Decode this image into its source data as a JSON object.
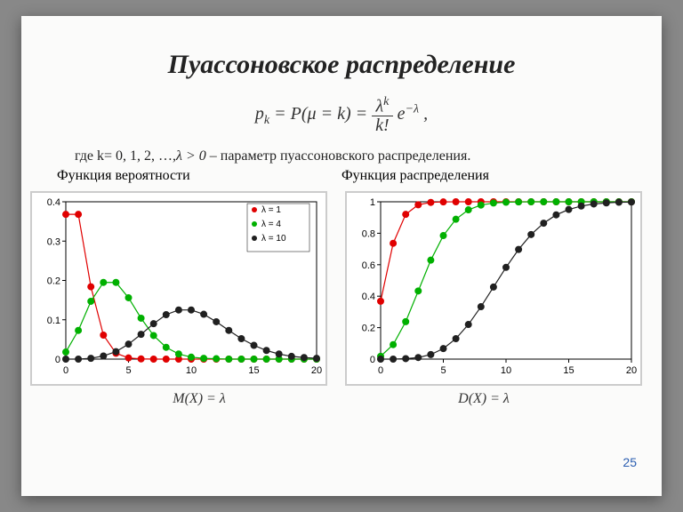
{
  "title": "Пуассоновское распределение",
  "formula_main": "p_k = P(μ = k) = (λ^k / k!) · e^(−λ) ,",
  "desc": "где k= 0, 1, 2, …, λ > 0 – параметр пуассоновского распределения.",
  "subtitle_left": "Функция вероятности",
  "subtitle_right": "Функция распределения",
  "formula_mean": "M(X) = λ",
  "formula_var": "D(X) = λ",
  "page_num": "25",
  "chart_pmf": {
    "type": "line-scatter",
    "xlim": [
      0,
      20
    ],
    "ylim": [
      0,
      0.4
    ],
    "xticks": [
      0,
      5,
      10,
      15,
      20
    ],
    "yticks": [
      0,
      0.1,
      0.2,
      0.3,
      0.4
    ],
    "background": "#ffffff",
    "border_color": "#000000",
    "grid": false,
    "marker_size": 3.5,
    "line_width": 1.2,
    "legend_pos": "top-right",
    "series": [
      {
        "label": "λ = 1",
        "color": "#e00000",
        "x": [
          0,
          1,
          2,
          3,
          4,
          5,
          6,
          7,
          8,
          9,
          10,
          11,
          12,
          13,
          14,
          15,
          16,
          17,
          18,
          19,
          20
        ],
        "y": [
          0.368,
          0.368,
          0.184,
          0.061,
          0.015,
          0.003,
          0.0005,
          0,
          0,
          0,
          0,
          0,
          0,
          0,
          0,
          0,
          0,
          0,
          0,
          0,
          0
        ]
      },
      {
        "label": "λ = 4",
        "color": "#00b000",
        "x": [
          0,
          1,
          2,
          3,
          4,
          5,
          6,
          7,
          8,
          9,
          10,
          11,
          12,
          13,
          14,
          15,
          16,
          17,
          18,
          19,
          20
        ],
        "y": [
          0.018,
          0.073,
          0.147,
          0.195,
          0.195,
          0.156,
          0.104,
          0.06,
          0.03,
          0.013,
          0.005,
          0.002,
          0.001,
          0,
          0,
          0,
          0,
          0,
          0,
          0,
          0
        ]
      },
      {
        "label": "λ = 10",
        "color": "#202020",
        "x": [
          0,
          1,
          2,
          3,
          4,
          5,
          6,
          7,
          8,
          9,
          10,
          11,
          12,
          13,
          14,
          15,
          16,
          17,
          18,
          19,
          20
        ],
        "y": [
          0,
          0,
          0.002,
          0.008,
          0.019,
          0.038,
          0.063,
          0.09,
          0.113,
          0.125,
          0.125,
          0.114,
          0.095,
          0.073,
          0.052,
          0.035,
          0.022,
          0.013,
          0.007,
          0.004,
          0.002
        ]
      }
    ]
  },
  "chart_cdf": {
    "type": "line-scatter",
    "xlim": [
      0,
      20
    ],
    "ylim": [
      0,
      1.0
    ],
    "xticks": [
      0,
      5,
      10,
      15,
      20
    ],
    "yticks": [
      0,
      0.2,
      0.4,
      0.6,
      0.8,
      1.0
    ],
    "background": "#ffffff",
    "border_color": "#000000",
    "grid": false,
    "marker_size": 3.5,
    "line_width": 1.2,
    "series": [
      {
        "label": "λ = 1",
        "color": "#e00000",
        "x": [
          0,
          1,
          2,
          3,
          4,
          5,
          6,
          7,
          8,
          9,
          10,
          11,
          12,
          13,
          14,
          15,
          16,
          17,
          18,
          19,
          20
        ],
        "y": [
          0.368,
          0.736,
          0.92,
          0.981,
          0.996,
          0.999,
          1,
          1,
          1,
          1,
          1,
          1,
          1,
          1,
          1,
          1,
          1,
          1,
          1,
          1,
          1
        ]
      },
      {
        "label": "λ = 4",
        "color": "#00b000",
        "x": [
          0,
          1,
          2,
          3,
          4,
          5,
          6,
          7,
          8,
          9,
          10,
          11,
          12,
          13,
          14,
          15,
          16,
          17,
          18,
          19,
          20
        ],
        "y": [
          0.018,
          0.092,
          0.238,
          0.433,
          0.629,
          0.785,
          0.889,
          0.949,
          0.979,
          0.992,
          0.997,
          0.999,
          1,
          1,
          1,
          1,
          1,
          1,
          1,
          1,
          1
        ]
      },
      {
        "label": "λ = 10",
        "color": "#202020",
        "x": [
          0,
          1,
          2,
          3,
          4,
          5,
          6,
          7,
          8,
          9,
          10,
          11,
          12,
          13,
          14,
          15,
          16,
          17,
          18,
          19,
          20
        ],
        "y": [
          0,
          0,
          0.003,
          0.01,
          0.029,
          0.067,
          0.13,
          0.22,
          0.333,
          0.458,
          0.583,
          0.697,
          0.792,
          0.864,
          0.917,
          0.951,
          0.973,
          0.986,
          0.993,
          0.997,
          0.998
        ]
      }
    ]
  }
}
